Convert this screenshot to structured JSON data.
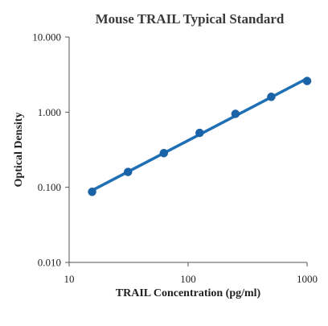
{
  "chart_data": {
    "type": "scatter",
    "title": "Mouse TRAIL Typical Standard",
    "xlabel": "TRAIL Concentration (pg/ml)",
    "ylabel": "Optical Density",
    "x_scale": "log",
    "y_scale": "log",
    "xlim": [
      10,
      1000
    ],
    "ylim": [
      0.01,
      10
    ],
    "x_ticks": [
      "10",
      "100",
      "1000"
    ],
    "y_ticks": [
      "10.000",
      "1.000",
      "0.100",
      "0.010"
    ],
    "grid": false,
    "legend": "none",
    "series_color": "#1f6fb5",
    "points": [
      {
        "x": 15.6,
        "y": 0.087
      },
      {
        "x": 31.25,
        "y": 0.16
      },
      {
        "x": 62.5,
        "y": 0.285
      },
      {
        "x": 125,
        "y": 0.53
      },
      {
        "x": 250,
        "y": 0.95
      },
      {
        "x": 500,
        "y": 1.6
      },
      {
        "x": 1000,
        "y": 2.6
      }
    ],
    "fit_line": true
  }
}
